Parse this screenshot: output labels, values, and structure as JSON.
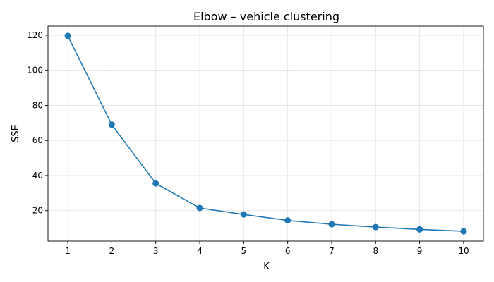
{
  "chart_data": {
    "type": "line",
    "title": "Elbow – vehicle clustering",
    "xlabel": "K",
    "ylabel": "SSE",
    "x": [
      1,
      2,
      3,
      4,
      5,
      6,
      7,
      8,
      9,
      10
    ],
    "series": [
      {
        "values": [
          119.6,
          69.0,
          35.5,
          21.5,
          17.8,
          14.4,
          12.2,
          10.6,
          9.3,
          8.2
        ],
        "color": "#1f77b4",
        "marker": "circle"
      }
    ],
    "xticks": [
      1,
      2,
      3,
      4,
      5,
      6,
      7,
      8,
      9,
      10
    ],
    "yticks": [
      20,
      40,
      60,
      80,
      100,
      120
    ],
    "xlim": [
      0.55,
      10.45
    ],
    "ylim": [
      2.6,
      125.2
    ],
    "grid": true,
    "legend": false
  }
}
